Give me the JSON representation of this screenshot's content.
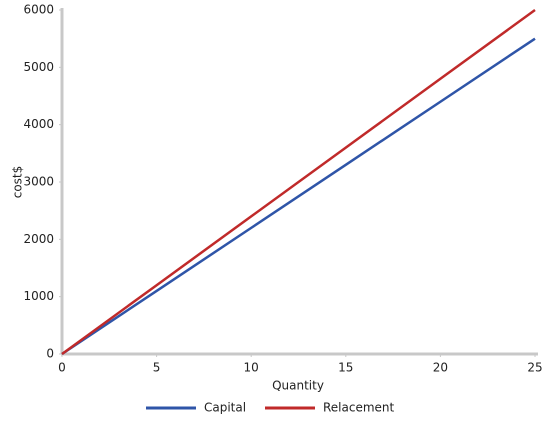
{
  "chart_data": {
    "type": "line",
    "x_label": "Quantity",
    "y_label": "cost$",
    "x": [
      0,
      5,
      10,
      15,
      20,
      25
    ],
    "series": [
      {
        "name": "Capital",
        "color": "#2f55a8",
        "values": [
          0,
          1100,
          2200,
          3300,
          4400,
          5500
        ]
      },
      {
        "name": "Relacement",
        "color": "#c02a2a",
        "values": [
          0,
          1200,
          2400,
          3600,
          4800,
          6000
        ]
      }
    ],
    "xlim": [
      0,
      25
    ],
    "xticks": [
      0,
      5,
      10,
      15,
      20,
      25
    ],
    "ylim": [
      0,
      6000
    ],
    "yticks": [
      0,
      1000,
      2000,
      3000,
      4000,
      5000,
      6000
    ],
    "grid": false,
    "legend": "bottom"
  }
}
